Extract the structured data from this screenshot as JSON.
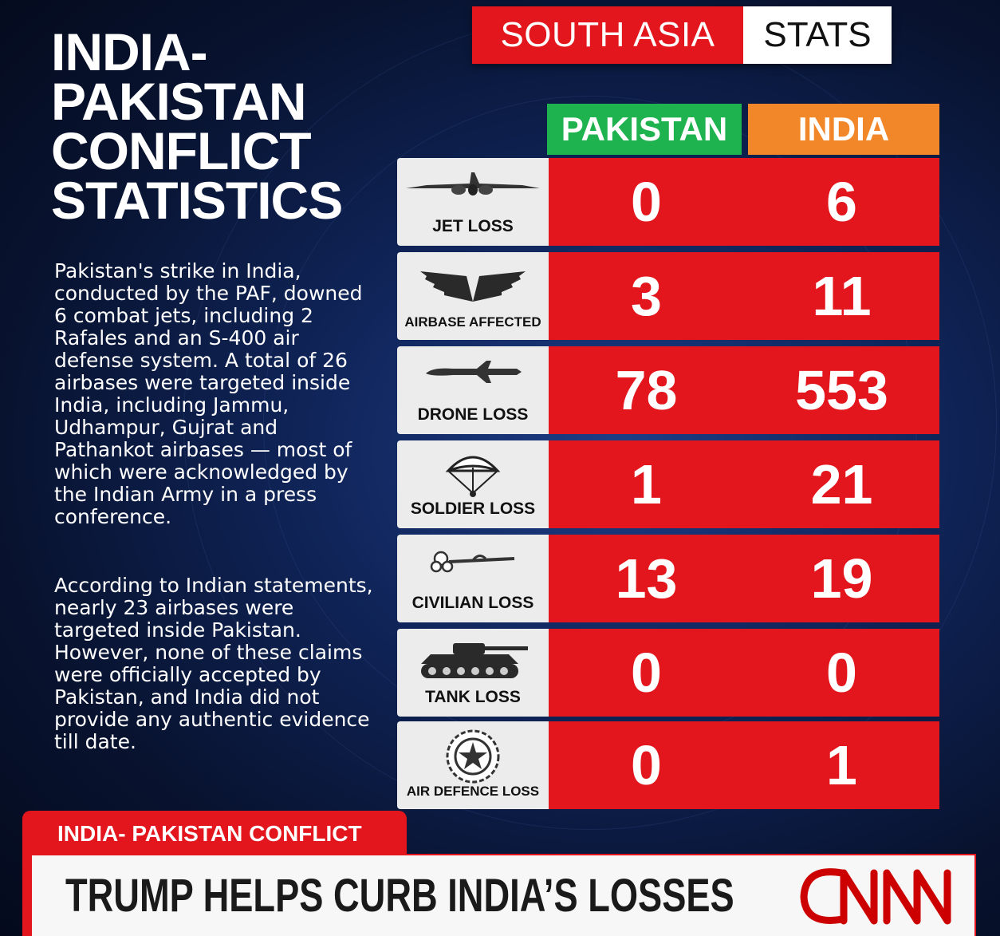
{
  "header_tag": {
    "red_text": "SOUTH ASIA",
    "white_text": "STATS"
  },
  "title_lines": [
    "INDIA-",
    "PAKISTAN",
    "CONFLICT",
    "STATISTICS"
  ],
  "paragraph_1": "Pakistan's strike in India, conducted by the PAF, downed 6 combat jets, including 2 Rafales and an S-400 air defense system. A total of 26 airbases were targeted inside India, including Jammu, Udhampur, Gujrat and Pathankot airbases — most of which were acknowledged by the Indian Army in a press conference.",
  "paragraph_2": "According to Indian statements, nearly 23 airbases were targeted inside Pakistan. However, none of these claims were officially accepted by Pakistan, and India did not provide any authentic evidence till date.",
  "columns": {
    "pakistan": "PAKISTAN",
    "india": "INDIA"
  },
  "colors": {
    "red": "#e2161c",
    "green": "#1fb350",
    "orange": "#f2872a"
  },
  "rows": [
    {
      "label": "JET LOSS",
      "icon": "jet-icon",
      "pakistan": "0",
      "india": "6"
    },
    {
      "label": "AIRBASE AFFECTED",
      "icon": "wings-icon",
      "pakistan": "3",
      "india": "11"
    },
    {
      "label": "DRONE LOSS",
      "icon": "drone-icon",
      "pakistan": "78",
      "india": "553"
    },
    {
      "label": "SOLDIER LOSS",
      "icon": "parachute-icon",
      "pakistan": "1",
      "india": "21"
    },
    {
      "label": "CIVILIAN LOSS",
      "icon": "flower-icon",
      "pakistan": "13",
      "india": "19"
    },
    {
      "label": "TANK LOSS",
      "icon": "tank-icon",
      "pakistan": "0",
      "india": "0"
    },
    {
      "label": "AIR DEFENCE LOSS",
      "icon": "air-defence-emblem-icon",
      "pakistan": "0",
      "india": "1"
    }
  ],
  "lower_third": {
    "tag": "INDIA- PAKISTAN CONFLICT",
    "headline": "TRUMP HELPS CURB INDIA’S LOSSES",
    "logo": "CNN"
  }
}
